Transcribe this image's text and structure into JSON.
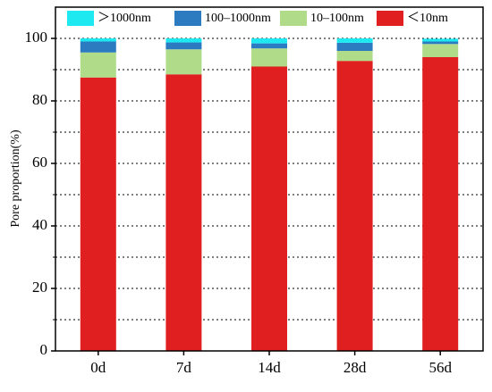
{
  "chart_data": {
    "type": "stacked-bar",
    "y_label": "Pore proportion(%)",
    "categories": [
      "0d",
      "7d",
      "14d",
      "28d",
      "56d"
    ],
    "series": [
      {
        "name": "＜10nm",
        "color": "#e02020",
        "values": [
          87.5,
          88.5,
          91,
          92.8,
          94
        ]
      },
      {
        "name": "10–100nm",
        "color": "#b0dc8a",
        "values": [
          8,
          8,
          5.8,
          3.2,
          4.2
        ]
      },
      {
        "name": "100–1000nm",
        "color": "#2c7bc0",
        "values": [
          3.5,
          2.2,
          1.6,
          2.6,
          0.8
        ]
      },
      {
        "name": "＞1000nm",
        "color": "#1ee8f0",
        "values": [
          1,
          1.3,
          1.6,
          1.4,
          0.9
        ]
      }
    ],
    "ylim": [
      0,
      110
    ],
    "yticks": [
      0,
      20,
      40,
      60,
      80,
      100
    ],
    "minor_yticks": [
      10,
      30,
      50,
      70,
      90
    ],
    "grid": true,
    "legend": "top"
  }
}
